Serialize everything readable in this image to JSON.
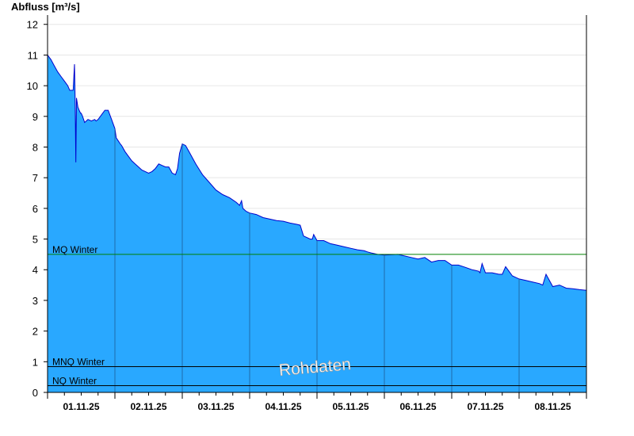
{
  "chart_data": {
    "type": "area",
    "ylabel": "Abfluss [m³/s]",
    "ylim": [
      0,
      12.2
    ],
    "yticks": [
      0,
      1,
      2,
      3,
      4,
      5,
      6,
      7,
      8,
      9,
      10,
      11,
      12
    ],
    "xlim": [
      0,
      8
    ],
    "x_tick_labels": [
      "01.11.25",
      "02.11.25",
      "03.11.25",
      "04.11.25",
      "05.11.25",
      "06.11.25",
      "07.11.25",
      "08.11.25"
    ],
    "grid": "horizontal",
    "watermark": "Rohdaten",
    "colors": {
      "fill": "#29a8ff",
      "line": "#0000cc",
      "mq": "#008000",
      "mnq": "#000000",
      "nq": "#000000"
    },
    "reference_lines": [
      {
        "label": "MQ Winter",
        "value": 4.5,
        "color": "#008000"
      },
      {
        "label": "MNQ Winter",
        "value": 0.84,
        "color": "#000000"
      },
      {
        "label": "NQ Winter",
        "value": 0.22,
        "color": "#000000"
      }
    ],
    "series": [
      {
        "x": [
          0,
          0.05,
          0.1,
          0.15,
          0.2,
          0.25,
          0.3,
          0.33,
          0.38,
          0.4,
          0.41,
          0.42,
          0.43,
          0.45,
          0.47,
          0.48,
          0.49,
          0.5,
          0.52,
          0.55,
          0.6,
          0.65,
          0.7,
          0.72,
          0.75,
          0.8,
          0.85,
          0.9,
          0.95,
          1.0,
          1.02,
          1.05,
          1.08,
          1.1,
          1.15,
          1.2,
          1.25,
          1.3,
          1.35,
          1.4,
          1.45,
          1.5,
          1.55,
          1.6,
          1.65,
          1.7,
          1.75,
          1.8,
          1.85,
          1.9,
          1.93,
          1.96,
          2.0,
          2.05,
          2.1,
          2.2,
          2.3,
          2.4,
          2.5,
          2.6,
          2.7,
          2.8,
          2.85,
          2.88,
          2.9,
          2.95,
          3.0,
          3.1,
          3.2,
          3.3,
          3.4,
          3.5,
          3.6,
          3.7,
          3.75,
          3.8,
          3.9,
          3.93,
          3.95,
          4.0,
          4.1,
          4.2,
          4.3,
          4.4,
          4.5,
          4.6,
          4.7,
          4.75,
          4.8,
          4.9,
          5.0,
          5.2,
          5.4,
          5.5,
          5.6,
          5.7,
          5.8,
          5.9,
          6.0,
          6.1,
          6.2,
          6.3,
          6.4,
          6.42,
          6.45,
          6.5,
          6.6,
          6.7,
          6.75,
          6.8,
          6.9,
          7.0,
          7.1,
          7.2,
          7.3,
          7.35,
          7.4,
          7.5,
          7.6,
          7.7,
          7.8,
          7.9,
          8.0
        ],
        "values": [
          11.0,
          10.85,
          10.65,
          10.45,
          10.3,
          10.15,
          10.0,
          9.85,
          9.85,
          10.7,
          9.6,
          7.5,
          9.6,
          9.3,
          9.2,
          9.15,
          9.1,
          9.1,
          9.0,
          8.8,
          8.9,
          8.85,
          8.9,
          8.85,
          8.9,
          9.05,
          9.2,
          9.2,
          8.9,
          8.6,
          8.3,
          8.2,
          8.1,
          8.05,
          7.85,
          7.7,
          7.55,
          7.45,
          7.35,
          7.25,
          7.2,
          7.15,
          7.2,
          7.3,
          7.45,
          7.4,
          7.35,
          7.35,
          7.15,
          7.1,
          7.3,
          7.8,
          8.1,
          8.05,
          7.85,
          7.45,
          7.1,
          6.85,
          6.6,
          6.45,
          6.35,
          6.2,
          6.1,
          6.25,
          6.0,
          5.9,
          5.85,
          5.8,
          5.7,
          5.65,
          5.6,
          5.58,
          5.52,
          5.48,
          5.45,
          5.1,
          5.0,
          5.0,
          5.15,
          4.95,
          4.95,
          4.85,
          4.8,
          4.75,
          4.7,
          4.65,
          4.62,
          4.58,
          4.55,
          4.5,
          4.48,
          4.5,
          4.4,
          4.35,
          4.4,
          4.25,
          4.3,
          4.3,
          4.15,
          4.15,
          4.08,
          4.0,
          3.95,
          3.9,
          4.2,
          3.9,
          3.9,
          3.85,
          3.85,
          4.1,
          3.8,
          3.7,
          3.65,
          3.6,
          3.55,
          3.5,
          3.85,
          3.45,
          3.5,
          3.4,
          3.38,
          3.35,
          3.33
        ]
      }
    ]
  }
}
